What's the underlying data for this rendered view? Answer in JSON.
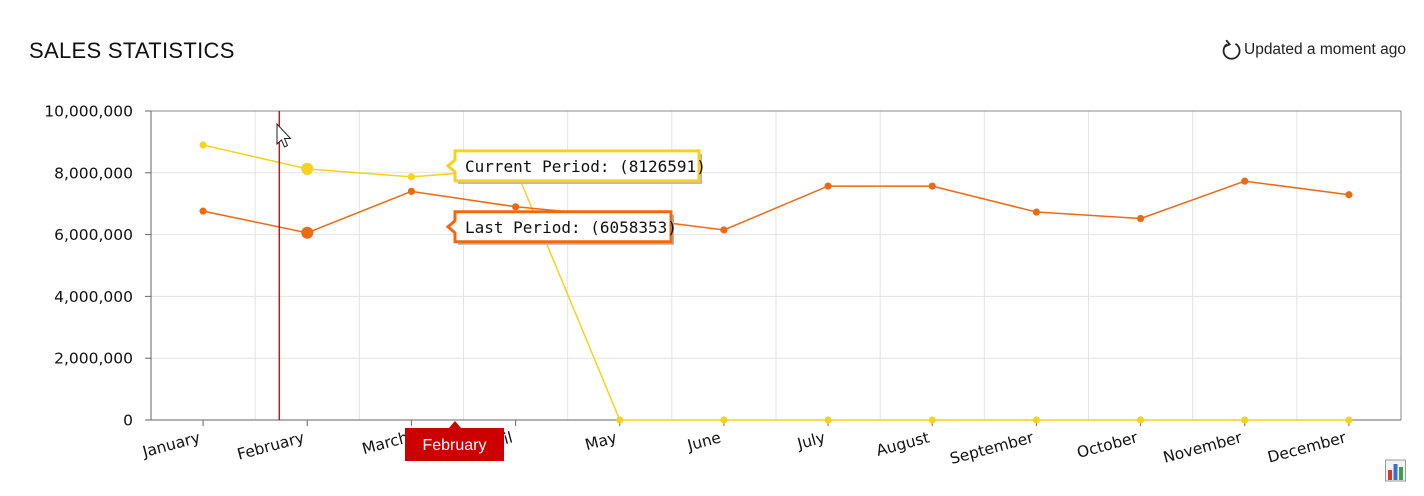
{
  "header": {
    "title": "SALES STATISTICS",
    "updated": "Updated a moment ago",
    "refresh_icon": "refresh-icon"
  },
  "chart_data": {
    "type": "line",
    "categories": [
      "January",
      "February",
      "March",
      "April",
      "May",
      "June",
      "July",
      "August",
      "September",
      "October",
      "November",
      "December"
    ],
    "series": [
      {
        "name": "Current Period",
        "color": "#f5d21e",
        "values": [
          8900000,
          8126591,
          7870000,
          8126591,
          0,
          0,
          0,
          0,
          0,
          0,
          0,
          0
        ]
      },
      {
        "name": "Last Period",
        "color": "#ec6a14",
        "values": [
          6760000,
          6058353,
          7400000,
          6900000,
          6580000,
          6150000,
          7570000,
          7570000,
          6730000,
          6520000,
          7730000,
          7290000
        ]
      }
    ],
    "ylim": [
      0,
      10000000
    ],
    "yticks": [
      "0",
      "2,000,000",
      "4,000,000",
      "6,000,000",
      "8,000,000",
      "10,000,000"
    ],
    "grid": true,
    "hovered_index": 1,
    "crosshair_label": "February",
    "tooltips": [
      {
        "text": "Current Period: (8126591)",
        "color": "#f5d21e"
      },
      {
        "text": "Last Period: (6058353)",
        "color": "#ec6a14"
      }
    ],
    "crosshair_color": "#b30000",
    "crosshair_label_bg": "#cc0000"
  },
  "footer": {
    "chart_type_icon": "bar-chart-icon"
  }
}
